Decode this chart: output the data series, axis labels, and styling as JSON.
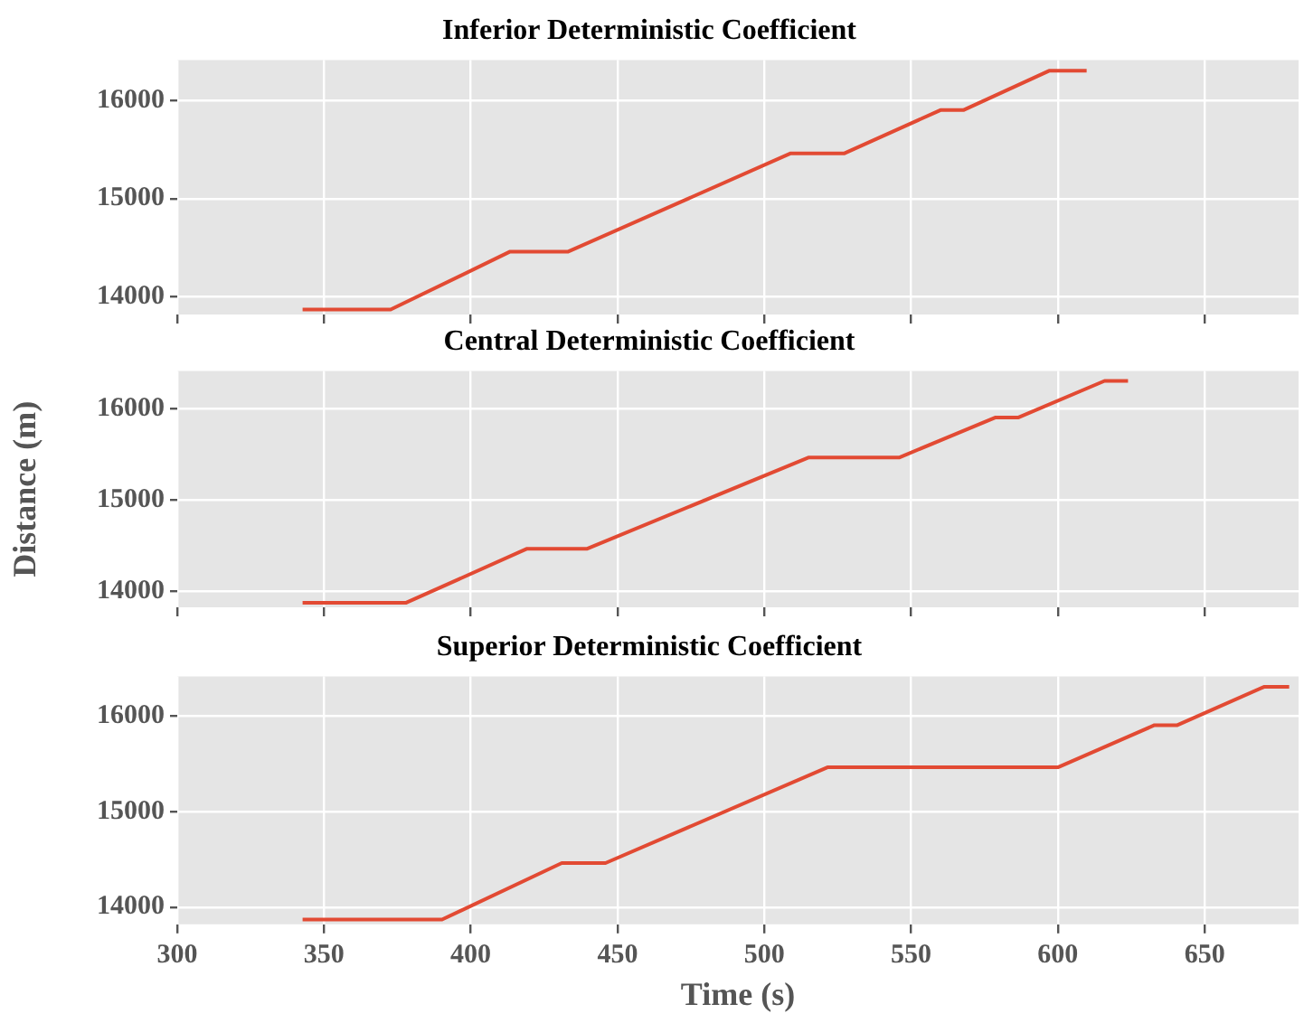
{
  "chart_data": [
    {
      "type": "line",
      "title": "Inferior Deterministic Coefficient",
      "x": [
        342.7,
        372.7,
        413.4,
        433.2,
        509,
        527.3,
        560,
        567.8,
        597,
        609.8
      ],
      "series": [
        {
          "color": "#e24a33",
          "values": [
            13870,
            13870,
            14460,
            14460,
            15460,
            15460,
            15900,
            15900,
            16300,
            16300
          ]
        }
      ],
      "xlim": [
        300,
        682
      ],
      "ylim": [
        13820,
        16410
      ],
      "xticks": [
        300,
        350,
        400,
        450,
        500,
        550,
        600,
        650
      ],
      "yticks": [
        14000,
        15000,
        16000
      ],
      "grid": true,
      "marker": "none",
      "line_style": "solid",
      "tick_labels": "y"
    },
    {
      "type": "line",
      "title": "Central Deterministic Coefficient",
      "ylabel": "Distance (m)",
      "x": [
        342.7,
        378,
        419,
        439.5,
        515,
        545.9,
        578.8,
        586.6,
        615.9,
        623.9
      ],
      "series": [
        {
          "color": "#e24a33",
          "values": [
            13870,
            13870,
            14460,
            14460,
            15460,
            15460,
            15900,
            15900,
            16300,
            16300
          ]
        }
      ],
      "xlim": [
        300,
        682
      ],
      "ylim": [
        13820,
        16410
      ],
      "xticks": [
        300,
        350,
        400,
        450,
        500,
        550,
        600,
        650
      ],
      "yticks": [
        14000,
        15000,
        16000
      ],
      "grid": true,
      "marker": "none",
      "line_style": "solid",
      "tick_labels": "y"
    },
    {
      "type": "line",
      "title": "Superior Deterministic Coefficient",
      "xlabel": "Time (s)",
      "x": [
        342.7,
        390.2,
        431,
        445.9,
        521.5,
        600,
        632.9,
        640.7,
        670.2,
        678.8
      ],
      "series": [
        {
          "color": "#e24a33",
          "values": [
            13870,
            13870,
            14460,
            14460,
            15460,
            15460,
            15900,
            15900,
            16300,
            16300
          ]
        }
      ],
      "xlim": [
        300,
        682
      ],
      "ylim": [
        13820,
        16410
      ],
      "xticks": [
        300,
        350,
        400,
        450,
        500,
        550,
        600,
        650
      ],
      "yticks": [
        14000,
        15000,
        16000
      ],
      "grid": true,
      "marker": "none",
      "line_style": "solid"
    }
  ]
}
